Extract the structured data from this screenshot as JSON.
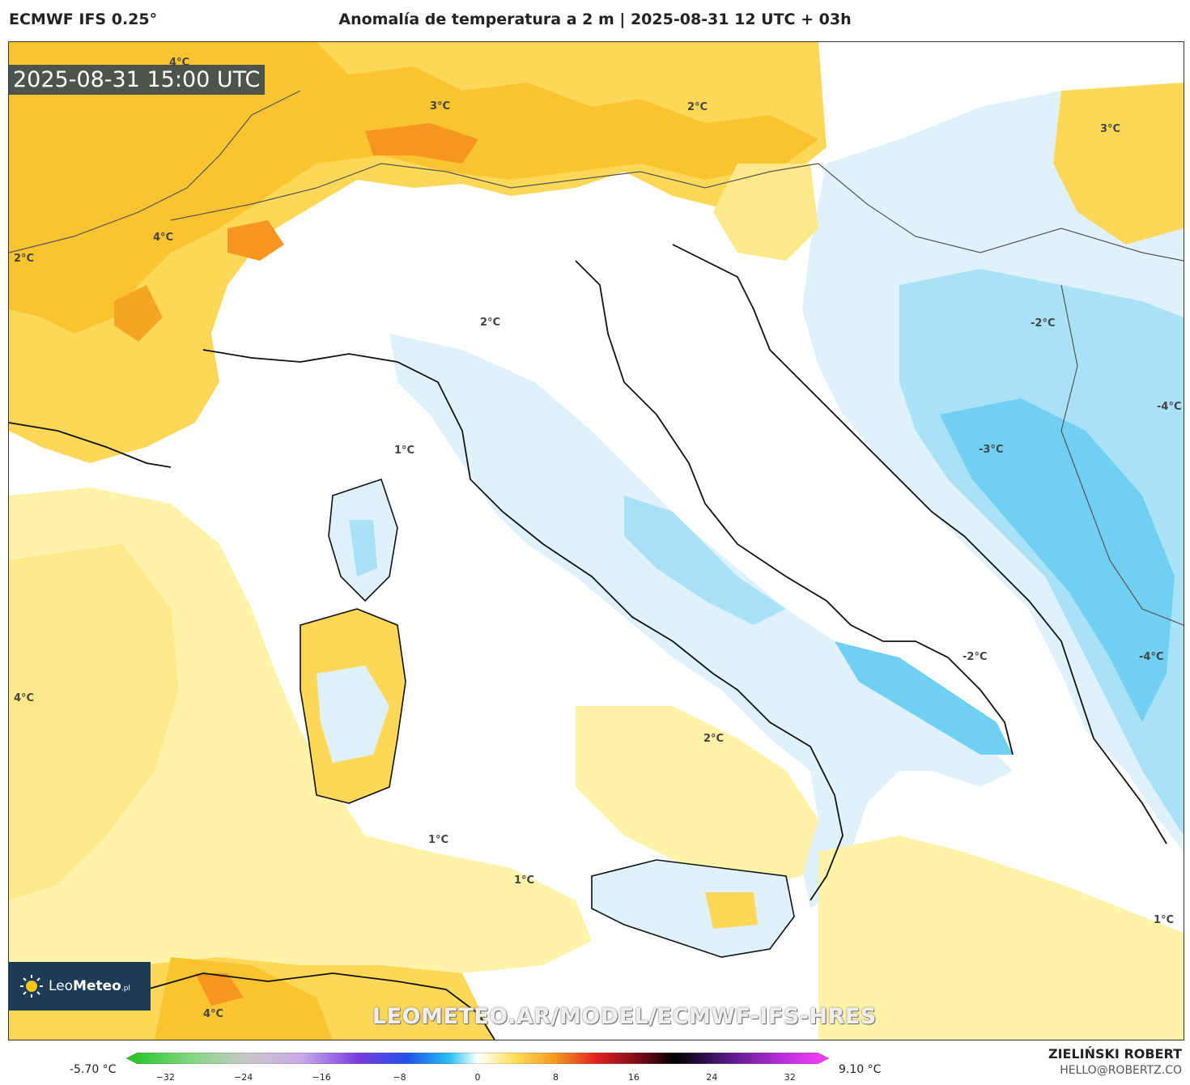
{
  "header": {
    "model": "ECMWF IFS 0.25°",
    "title": "Anomalía de temperatura a 2 m | 2025-08-31 12 UTC + 03h"
  },
  "map": {
    "timestamp": "2025-08-31 15:00 UTC",
    "watermark": "LEOMETEO.AR/MODEL/ECMWF-IFS-HRES",
    "contour_labels": [
      {
        "text": "4°C"
      },
      {
        "text": "3°C"
      },
      {
        "text": "2°C"
      },
      {
        "text": "3°C"
      },
      {
        "text": "4°C"
      },
      {
        "text": "2°C"
      },
      {
        "text": "2°C"
      },
      {
        "text": "-2°C"
      },
      {
        "text": "1°C"
      },
      {
        "text": "-4°C"
      },
      {
        "text": "-3°C"
      },
      {
        "text": "4°C"
      },
      {
        "text": "-2°C"
      },
      {
        "text": "-4°C"
      },
      {
        "text": "2°C"
      },
      {
        "text": "1°C"
      },
      {
        "text": "1°C"
      },
      {
        "text": "1°C"
      },
      {
        "text": "4°C"
      }
    ]
  },
  "logo": {
    "brand_light": "Leo",
    "brand_bold": "Meteo",
    "suffix": ".pl"
  },
  "colorbar": {
    "min_label": "-5.70 °C",
    "max_label": "9.10 °C",
    "ticks": [
      "−32",
      "−24",
      "−16",
      "−8",
      "0",
      "8",
      "16",
      "24",
      "32"
    ],
    "tick_values": [
      -32,
      -24,
      -16,
      -8,
      0,
      8,
      16,
      24,
      32
    ],
    "range": [
      -36,
      36
    ]
  },
  "credits": {
    "author": "ZIELIŃSKI ROBERT",
    "email": "HELLO@ROBERTZ.CO"
  }
}
